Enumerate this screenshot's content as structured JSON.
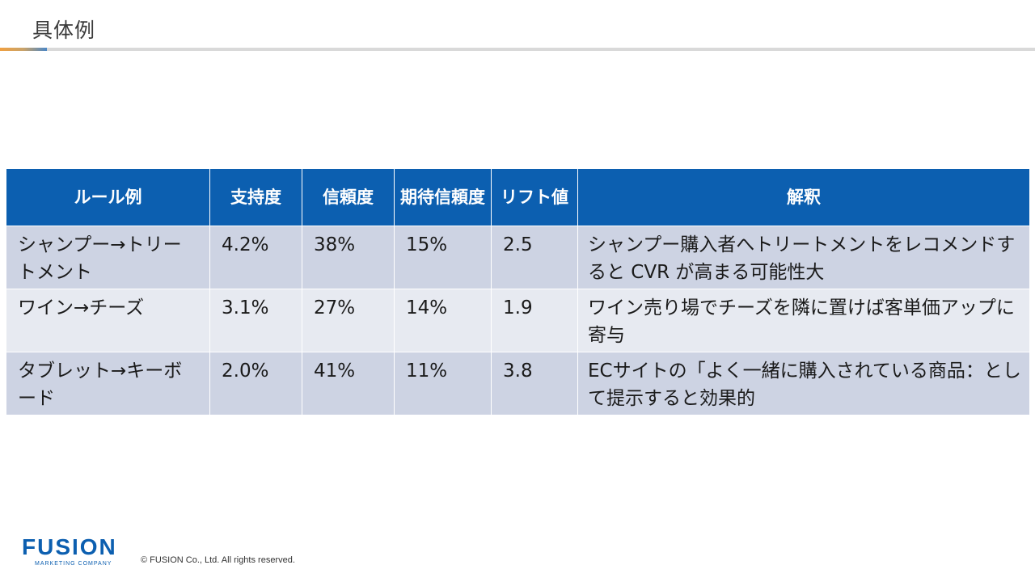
{
  "slide": {
    "title": "具体例"
  },
  "table": {
    "headers": [
      "ルール例",
      "支持度",
      "信頼度",
      "期待信頼度",
      "リフト値",
      "解釈"
    ],
    "rows": [
      {
        "rule": "シャンプー→トリートメント",
        "support": "4.2%",
        "confidence": "38%",
        "expected_confidence": "15%",
        "lift": "2.5",
        "interpretation": "シャンプー購入者へトリートメントをレコメンドすると CVR が高まる可能性大"
      },
      {
        "rule": "ワイン→チーズ",
        "support": "3.1%",
        "confidence": "27%",
        "expected_confidence": "14%",
        "lift": "1.9",
        "interpretation": "ワイン売り場でチーズを隣に置けば客単価アップに寄与"
      },
      {
        "rule": "タブレット→キーボード",
        "support": "2.0%",
        "confidence": "41%",
        "expected_confidence": "11%",
        "lift": "3.8",
        "interpretation": "ECサイトの「よく一緒に購入されている商品：として提示すると効果的"
      }
    ]
  },
  "footer": {
    "logo_main": "FUSION",
    "logo_sub": "MARKETING COMPANY",
    "copyright": "© FUSION Co., Ltd. All rights reserved."
  },
  "colors": {
    "header_bg": "#0c5fb0",
    "row_dark": "#cdd3e3",
    "row_light": "#e7eaf1",
    "brand": "#0c5fb0"
  }
}
